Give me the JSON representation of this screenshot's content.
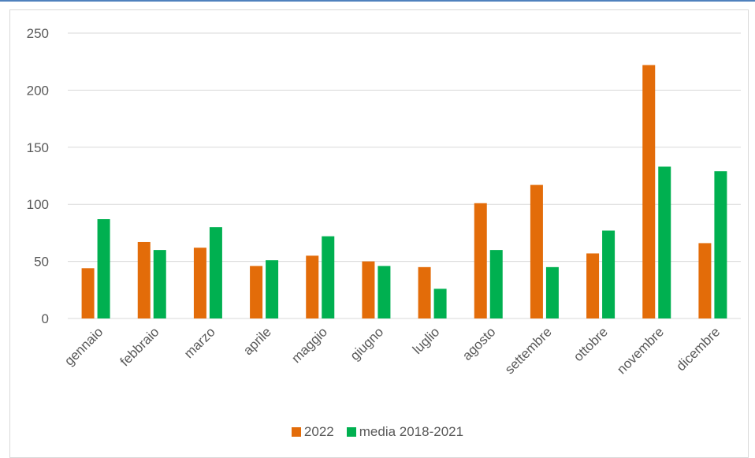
{
  "chart_data": {
    "type": "bar",
    "categories": [
      "gennaio",
      "febbraio",
      "marzo",
      "aprile",
      "maggio",
      "giugno",
      "luglio",
      "agosto",
      "settembre",
      "ottobre",
      "novembre",
      "dicembre"
    ],
    "series": [
      {
        "name": "2022",
        "color": "#e36c09",
        "values": [
          44,
          67,
          62,
          46,
          55,
          50,
          45,
          101,
          117,
          57,
          222,
          66
        ]
      },
      {
        "name": "media 2018-2021",
        "color": "#00b050",
        "values": [
          87,
          60,
          80,
          51,
          72,
          46,
          26,
          60,
          45,
          77,
          133,
          129
        ]
      }
    ],
    "title": "",
    "xlabel": "",
    "ylabel": "",
    "ylim": [
      0,
      250
    ],
    "yticks": [
      0,
      50,
      100,
      150,
      200,
      250
    ],
    "grid": true,
    "legend_position": "bottom"
  }
}
